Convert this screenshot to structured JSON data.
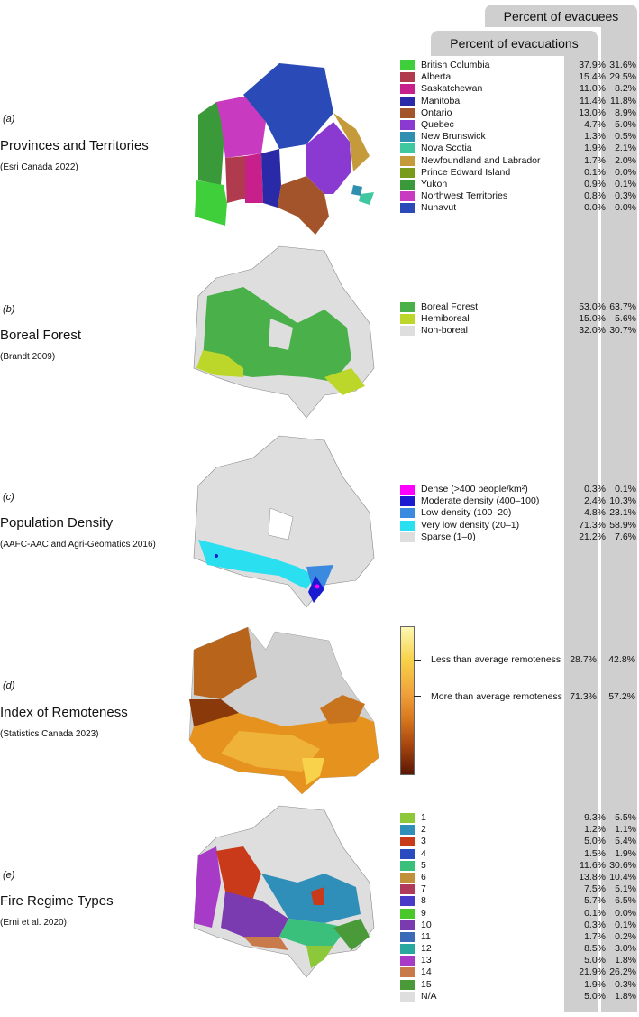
{
  "headers": {
    "evacuees": "Percent of evacuees",
    "evacuations": "Percent of evacuations"
  },
  "panels": [
    {
      "label": "(a)",
      "title": "Provinces and Territories",
      "source": "(Esri Canada 2022)",
      "legend": [
        {
          "name": "British Columbia",
          "color": "#3fcf3a",
          "evacuations": "37.9%",
          "evacuees": "31.6%"
        },
        {
          "name": "Alberta",
          "color": "#b03a4e",
          "evacuations": "15.4%",
          "evacuees": "29.5%"
        },
        {
          "name": "Saskatchewan",
          "color": "#c8208a",
          "evacuations": "11.0%",
          "evacuees": "8.2%"
        },
        {
          "name": "Manitoba",
          "color": "#2a2aa8",
          "evacuations": "11.4%",
          "evacuees": "11.8%"
        },
        {
          "name": "Ontario",
          "color": "#a3542a",
          "evacuations": "13.0%",
          "evacuees": "8.9%"
        },
        {
          "name": "Quebec",
          "color": "#8a3ad0",
          "evacuations": "4.7%",
          "evacuees": "5.0%"
        },
        {
          "name": "New Brunswick",
          "color": "#2f8fb0",
          "evacuations": "1.3%",
          "evacuees": "0.5%"
        },
        {
          "name": "Nova Scotia",
          "color": "#3fc7a0",
          "evacuations": "1.9%",
          "evacuees": "2.1%"
        },
        {
          "name": "Newfoundland and Labrador",
          "color": "#c49a3a",
          "evacuations": "1.7%",
          "evacuees": "2.0%"
        },
        {
          "name": "Prince Edward Island",
          "color": "#7a9a1a",
          "evacuations": "0.1%",
          "evacuees": "0.0%"
        },
        {
          "name": "Yukon",
          "color": "#3a9a3a",
          "evacuations": "0.9%",
          "evacuees": "0.1%"
        },
        {
          "name": "Northwest Territories",
          "color": "#c83ac0",
          "evacuations": "0.8%",
          "evacuees": "0.3%"
        },
        {
          "name": "Nunavut",
          "color": "#2a4ab8",
          "evacuations": "0.0%",
          "evacuees": "0.0%"
        }
      ]
    },
    {
      "label": "(b)",
      "title": "Boreal Forest",
      "source": "(Brandt 2009)",
      "legend": [
        {
          "name": "Boreal Forest",
          "color": "#4ab04a",
          "evacuations": "53.0%",
          "evacuees": "63.7%"
        },
        {
          "name": "Hemiboreal",
          "color": "#bcd62a",
          "evacuations": "15.0%",
          "evacuees": "5.6%"
        },
        {
          "name": "Non-boreal",
          "color": "#dedede",
          "evacuations": "32.0%",
          "evacuees": "30.7%"
        }
      ]
    },
    {
      "label": "(c)",
      "title": "Population Density",
      "source": "(AAFC-AAC and Agri-Geomatics 2016)",
      "legend": [
        {
          "name": "Dense (>400 people/km²)",
          "color": "#ff00ff",
          "evacuations": "0.3%",
          "evacuees": "0.1%"
        },
        {
          "name": "Moderate density (400–100)",
          "color": "#1a1ad0",
          "evacuations": "2.4%",
          "evacuees": "10.3%"
        },
        {
          "name": "Low density (100–20)",
          "color": "#3a8ae0",
          "evacuations": "4.8%",
          "evacuees": "23.1%"
        },
        {
          "name": "Very low density (20–1)",
          "color": "#2ae0f0",
          "evacuations": "71.3%",
          "evacuees": "58.9%"
        },
        {
          "name": "Sparse (1–0)",
          "color": "#dedede",
          "evacuations": "21.2%",
          "evacuees": "7.6%"
        }
      ]
    },
    {
      "label": "(d)",
      "title": "Index of Remoteness",
      "source": "(Statistics Canada 2023)",
      "gradient": [
        {
          "name": "Less than average remoteness",
          "evacuations": "28.7%",
          "evacuees": "42.8%"
        },
        {
          "name": "More than average remoteness",
          "evacuations": "71.3%",
          "evacuees": "57.2%"
        }
      ]
    },
    {
      "label": "(e)",
      "title": "Fire Regime Types",
      "source": "(Erni et al. 2020)",
      "legend": [
        {
          "name": "1",
          "color": "#8cc83a",
          "evacuations": "9.3%",
          "evacuees": "5.5%"
        },
        {
          "name": "2",
          "color": "#2f8fb8",
          "evacuations": "1.2%",
          "evacuees": "1.1%"
        },
        {
          "name": "3",
          "color": "#c83a1a",
          "evacuations": "5.0%",
          "evacuees": "5.4%"
        },
        {
          "name": "4",
          "color": "#2a4ac0",
          "evacuations": "1.5%",
          "evacuees": "1.9%"
        },
        {
          "name": "5",
          "color": "#3ac07a",
          "evacuations": "11.6%",
          "evacuees": "30.6%"
        },
        {
          "name": "6",
          "color": "#c0903a",
          "evacuations": "13.8%",
          "evacuees": "10.4%"
        },
        {
          "name": "7",
          "color": "#b03a5a",
          "evacuations": "7.5%",
          "evacuees": "5.1%"
        },
        {
          "name": "8",
          "color": "#4a3ac8",
          "evacuations": "5.7%",
          "evacuees": "6.5%"
        },
        {
          "name": "9",
          "color": "#4ac82a",
          "evacuations": "0.1%",
          "evacuees": "0.0%"
        },
        {
          "name": "10",
          "color": "#7a3ab0",
          "evacuations": "0.3%",
          "evacuees": "0.1%"
        },
        {
          "name": "11",
          "color": "#3a6ab8",
          "evacuations": "1.7%",
          "evacuees": "0.2%"
        },
        {
          "name": "12",
          "color": "#2aa8a0",
          "evacuations": "8.5%",
          "evacuees": "3.0%"
        },
        {
          "name": "13",
          "color": "#a83ac8",
          "evacuations": "5.0%",
          "evacuees": "1.8%"
        },
        {
          "name": "14",
          "color": "#c87a4a",
          "evacuations": "21.9%",
          "evacuees": "26.2%"
        },
        {
          "name": "15",
          "color": "#4a9a3a",
          "evacuations": "1.9%",
          "evacuees": "0.3%"
        },
        {
          "name": "N/A",
          "color": "#dedede",
          "evacuations": "5.0%",
          "evacuees": "1.8%"
        }
      ]
    }
  ]
}
